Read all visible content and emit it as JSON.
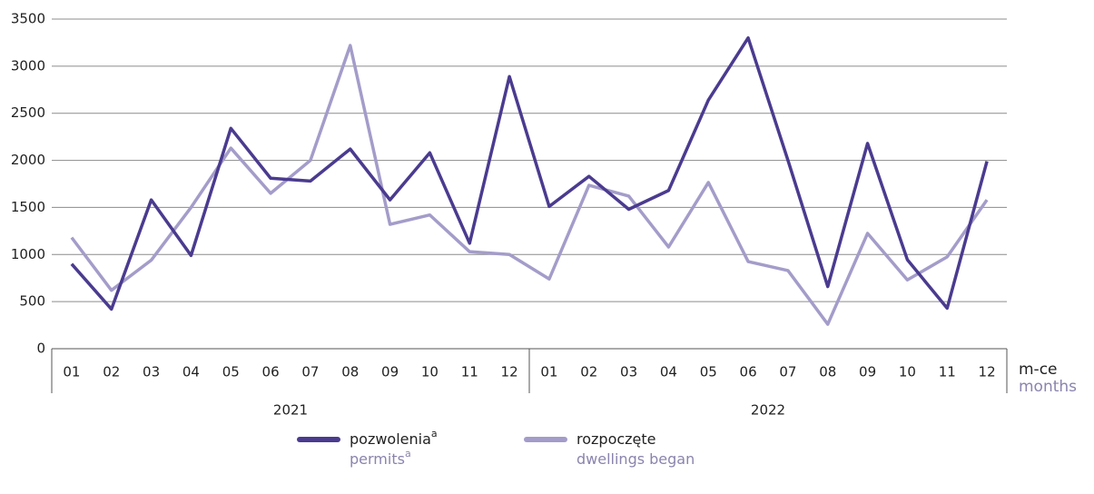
{
  "chart_data": {
    "type": "line",
    "categories": [
      "01",
      "02",
      "03",
      "04",
      "05",
      "06",
      "07",
      "08",
      "09",
      "10",
      "11",
      "12",
      "01",
      "02",
      "03",
      "04",
      "05",
      "06",
      "07",
      "08",
      "09",
      "10",
      "11",
      "12"
    ],
    "years": [
      "2021",
      "2022"
    ],
    "xlabel": "m-ce",
    "xlabel_en": "months",
    "note": "a",
    "series": [
      {
        "name": "pozwolenia",
        "name_en": "permits",
        "note": true,
        "color": "#4b3b8f",
        "values": [
          900,
          420,
          1580,
          990,
          2340,
          1810,
          1780,
          2120,
          1580,
          2080,
          1120,
          2890,
          1510,
          1830,
          1480,
          1680,
          2640,
          3300,
          2000,
          660,
          2180,
          945,
          430,
          1990
        ]
      },
      {
        "name": "rozpoczęte",
        "name_en": "dwellings began",
        "note": false,
        "color": "#a49cc9",
        "values": [
          1180,
          620,
          940,
          1500,
          2130,
          1650,
          2000,
          3220,
          1320,
          1420,
          1030,
          1000,
          740,
          1735,
          1620,
          1080,
          1765,
          925,
          830,
          260,
          1225,
          730,
          975,
          1580
        ]
      }
    ],
    "ylim": [
      0,
      3500
    ],
    "yticks": [
      0,
      500,
      1000,
      1500,
      2000,
      2500,
      3000,
      3500
    ],
    "grid": true
  }
}
